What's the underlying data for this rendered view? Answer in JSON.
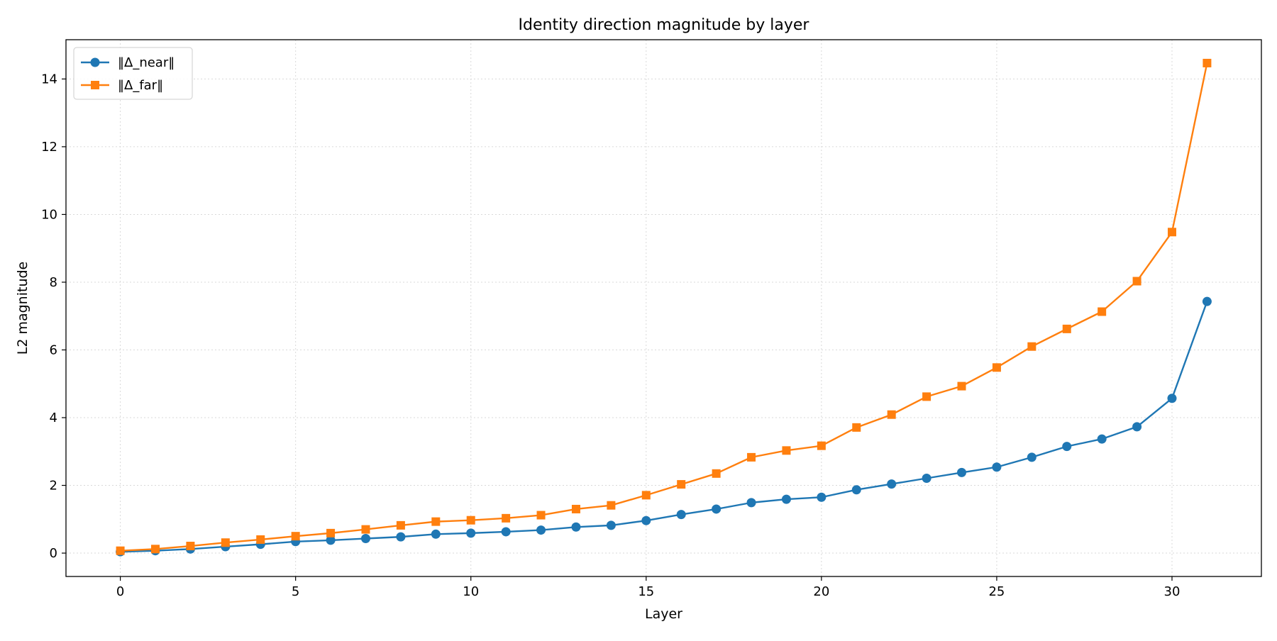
{
  "chart_data": {
    "type": "line",
    "title": "Identity direction magnitude by layer",
    "xlabel": "Layer",
    "ylabel": "L2 magnitude",
    "x": [
      0,
      1,
      2,
      3,
      4,
      5,
      6,
      7,
      8,
      9,
      10,
      11,
      12,
      13,
      14,
      15,
      16,
      17,
      18,
      19,
      20,
      21,
      22,
      23,
      24,
      25,
      26,
      27,
      28,
      29,
      30,
      31
    ],
    "xlim": [
      -1.55,
      32.55
    ],
    "ylim": [
      -0.69,
      15.16
    ],
    "xticks": [
      0,
      5,
      10,
      15,
      20,
      25,
      30
    ],
    "yticks": [
      0,
      2,
      4,
      6,
      8,
      10,
      12,
      14
    ],
    "grid": true,
    "legend_position": "top-left",
    "series": [
      {
        "name": "‖Δ_near‖",
        "color": "#1f77b4",
        "marker": "circle",
        "values": [
          0.04,
          0.07,
          0.12,
          0.19,
          0.26,
          0.34,
          0.38,
          0.43,
          0.48,
          0.56,
          0.59,
          0.63,
          0.68,
          0.77,
          0.82,
          0.96,
          1.14,
          1.3,
          1.49,
          1.59,
          1.65,
          1.87,
          2.04,
          2.21,
          2.38,
          2.54,
          2.83,
          3.15,
          3.37,
          3.73,
          4.57,
          7.43
        ]
      },
      {
        "name": "‖Δ_far‖",
        "color": "#ff7f0e",
        "marker": "square",
        "values": [
          0.07,
          0.12,
          0.21,
          0.31,
          0.4,
          0.5,
          0.59,
          0.7,
          0.82,
          0.93,
          0.97,
          1.03,
          1.12,
          1.3,
          1.41,
          1.71,
          2.03,
          2.35,
          2.83,
          3.03,
          3.17,
          3.71,
          4.09,
          4.62,
          4.93,
          5.48,
          6.1,
          6.62,
          7.13,
          8.03,
          9.48,
          14.47
        ]
      }
    ]
  }
}
